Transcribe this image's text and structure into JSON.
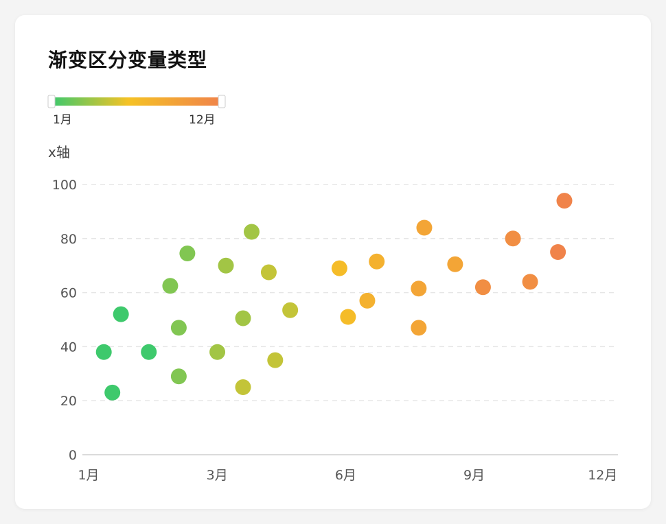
{
  "title": "渐变区分变量类型",
  "legend": {
    "min_label": "1月",
    "max_label": "12月",
    "colors": [
      "#3ec96c",
      "#f5c225",
      "#f0834a"
    ]
  },
  "chart_data": {
    "type": "scatter",
    "title": "渐变区分变量类型",
    "xlabel": "",
    "ylabel": "x轴",
    "x_tick_labels": [
      "1月",
      "3月",
      "6月",
      "9月",
      "12月"
    ],
    "x_tick_values": [
      1,
      4,
      7,
      10,
      13
    ],
    "xlim": [
      1,
      13.5
    ],
    "ylim": [
      0,
      100
    ],
    "y_ticks": [
      0,
      20,
      40,
      60,
      80,
      100
    ],
    "grid": true,
    "color_scale": {
      "min": 1,
      "max": 12,
      "colors": [
        "#3ec96c",
        "#f5c225",
        "#f0834a"
      ]
    },
    "points": [
      {
        "x": 1.5,
        "y": 38,
        "month": 1
      },
      {
        "x": 1.7,
        "y": 23,
        "month": 1
      },
      {
        "x": 1.9,
        "y": 52,
        "month": 1
      },
      {
        "x": 2.55,
        "y": 38,
        "month": 1
      },
      {
        "x": 3.05,
        "y": 62.5,
        "month": 3
      },
      {
        "x": 3.25,
        "y": 47,
        "month": 3
      },
      {
        "x": 3.25,
        "y": 29,
        "month": 3
      },
      {
        "x": 3.45,
        "y": 74.5,
        "month": 3
      },
      {
        "x": 4.15,
        "y": 38,
        "month": 4
      },
      {
        "x": 4.35,
        "y": 70,
        "month": 4
      },
      {
        "x": 4.75,
        "y": 50.5,
        "month": 4
      },
      {
        "x": 4.95,
        "y": 82.5,
        "month": 4
      },
      {
        "x": 4.75,
        "y": 25,
        "month": 5
      },
      {
        "x": 5.35,
        "y": 67.5,
        "month": 5
      },
      {
        "x": 5.5,
        "y": 35,
        "month": 5
      },
      {
        "x": 5.85,
        "y": 53.5,
        "month": 5
      },
      {
        "x": 7.0,
        "y": 69,
        "month": 7
      },
      {
        "x": 7.2,
        "y": 51,
        "month": 7
      },
      {
        "x": 7.65,
        "y": 57,
        "month": 8
      },
      {
        "x": 7.87,
        "y": 71.5,
        "month": 8
      },
      {
        "x": 8.85,
        "y": 61.5,
        "month": 9
      },
      {
        "x": 8.85,
        "y": 47,
        "month": 9
      },
      {
        "x": 8.98,
        "y": 84,
        "month": 9
      },
      {
        "x": 9.7,
        "y": 70.5,
        "month": 9
      },
      {
        "x": 10.35,
        "y": 62,
        "month": 11
      },
      {
        "x": 11.05,
        "y": 80,
        "month": 11
      },
      {
        "x": 11.45,
        "y": 64,
        "month": 11
      },
      {
        "x": 12.1,
        "y": 75,
        "month": 12
      },
      {
        "x": 12.25,
        "y": 94,
        "month": 12
      }
    ]
  }
}
